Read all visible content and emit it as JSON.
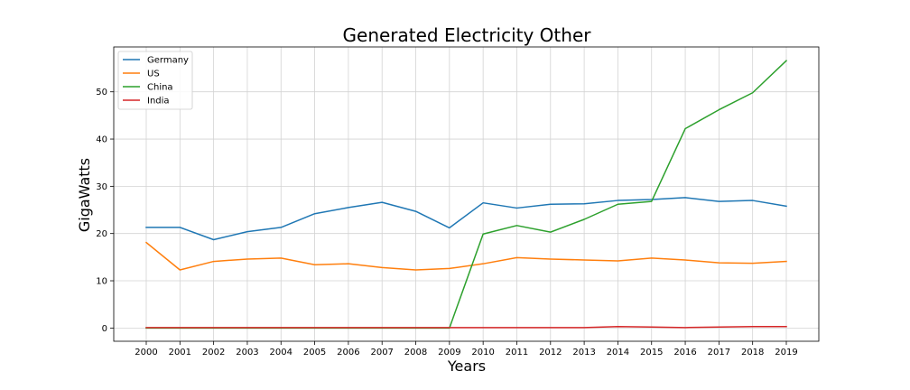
{
  "chart_data": {
    "type": "line",
    "title": "Generated Electricity Other",
    "xlabel": "Years",
    "ylabel": "GigaWatts",
    "x": [
      "2000",
      "2001",
      "2002",
      "2003",
      "2004",
      "2005",
      "2006",
      "2007",
      "2008",
      "2009",
      "2010",
      "2011",
      "2012",
      "2013",
      "2014",
      "2015",
      "2016",
      "2017",
      "2018",
      "2019"
    ],
    "y_ticks": [
      0,
      10,
      20,
      30,
      40,
      50
    ],
    "ylim": [
      -2.8,
      59.5
    ],
    "grid": true,
    "legend_position": "top-left",
    "series": [
      {
        "name": "Germany",
        "color": "#1f77b4",
        "values": [
          21.3,
          21.3,
          18.7,
          20.4,
          21.3,
          24.2,
          25.5,
          26.6,
          24.7,
          21.2,
          26.5,
          25.4,
          26.2,
          26.3,
          27.0,
          27.2,
          27.6,
          26.8,
          27.0,
          25.8
        ]
      },
      {
        "name": "US",
        "color": "#ff7f0e",
        "values": [
          18.1,
          12.3,
          14.1,
          14.6,
          14.8,
          13.4,
          13.6,
          12.8,
          12.3,
          12.6,
          13.6,
          14.9,
          14.6,
          14.4,
          14.2,
          14.8,
          14.4,
          13.8,
          13.7,
          14.1
        ]
      },
      {
        "name": "China",
        "color": "#2ca02c",
        "values": [
          0,
          0,
          0,
          0,
          0,
          0,
          0,
          0,
          0,
          0,
          19.9,
          21.7,
          20.3,
          23.0,
          26.2,
          26.8,
          42.2,
          46.2,
          49.8,
          56.6
        ]
      },
      {
        "name": "India",
        "color": "#d62728",
        "values": [
          0.1,
          0.1,
          0.1,
          0.1,
          0.1,
          0.1,
          0.1,
          0.1,
          0.1,
          0.1,
          0.1,
          0.1,
          0.1,
          0.1,
          0.3,
          0.2,
          0.1,
          0.2,
          0.3,
          0.3
        ]
      }
    ]
  }
}
